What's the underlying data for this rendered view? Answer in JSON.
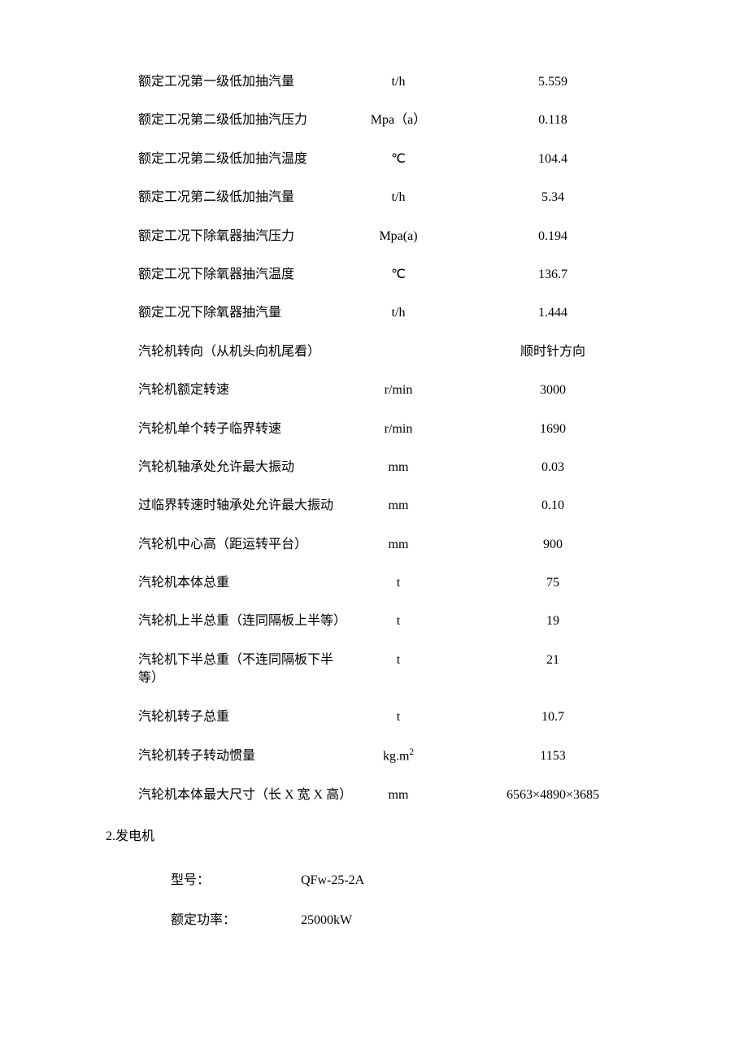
{
  "specs": [
    {
      "label": "额定工况第一级低加抽汽量",
      "unit": "t/h",
      "value": "5.559"
    },
    {
      "label": "额定工况第二级低加抽汽压力",
      "unit": "Mpa（a）",
      "value": "0.118"
    },
    {
      "label": "额定工况第二级低加抽汽温度",
      "unit": "℃",
      "value": "104.4"
    },
    {
      "label": "额定工况第二级低加抽汽量",
      "unit": "t/h",
      "value": "5.34"
    },
    {
      "label": "额定工况下除氧器抽汽压力",
      "unit": "Mpa(a)",
      "value": "0.194"
    },
    {
      "label": "额定工况下除氧器抽汽温度",
      "unit": "℃",
      "value": "136.7"
    },
    {
      "label": "额定工况下除氧器抽汽量",
      "unit": "t/h",
      "value": "1.444"
    },
    {
      "label": "汽轮机转向（从机头向机尾看）",
      "unit": "",
      "value": "顺时针方向",
      "cn": true
    },
    {
      "label": "汽轮机额定转速",
      "unit": "r/min",
      "value": "3000"
    },
    {
      "label": "汽轮机单个转子临界转速",
      "unit": "r/min",
      "value": "1690"
    },
    {
      "label": "汽轮机轴承处允许最大振动",
      "unit": "mm",
      "value": "0.03"
    },
    {
      "label": "过临界转速时轴承处允许最大振动",
      "unit": "mm",
      "value": "0.10"
    },
    {
      "label": "汽轮机中心高（距运转平台）",
      "unit": "mm",
      "value": "900"
    },
    {
      "label": "汽轮机本体总重",
      "unit": "t",
      "value": "75"
    },
    {
      "label": "汽轮机上半总重（连同隔板上半等）",
      "unit": "t",
      "value": "19"
    },
    {
      "label": "汽轮机下半总重（不连同隔板下半等）",
      "unit": "t",
      "value": "21"
    },
    {
      "label": "汽轮机转子总重",
      "unit": "t",
      "value": "10.7"
    },
    {
      "label": "汽轮机转子转动惯量",
      "unit": "kg.m²",
      "value": "1153",
      "sup": true
    },
    {
      "label": "汽轮机本体最大尺寸（长 X 宽 X 高）",
      "unit": "mm",
      "value": "6563×4890×3685"
    }
  ],
  "section2": {
    "heading": "2.发电机",
    "rows": [
      {
        "label": "型号：",
        "value": "QFw-25-2A"
      },
      {
        "label": "额定功率：",
        "value": "25000kW"
      }
    ]
  }
}
